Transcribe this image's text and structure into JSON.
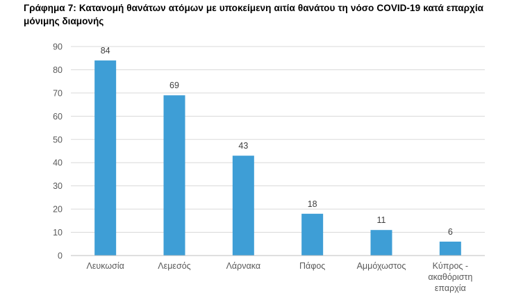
{
  "document": {
    "title": "Γράφημα 7: Κατανομή θανάτων ατόμων με υποκείμενη αιτία θανάτου τη νόσο COVID-19 κατά επαρχία μόνιμης διαμονής"
  },
  "chart_data": {
    "type": "bar",
    "categories": [
      "Λευκωσία",
      "Λεμεσός",
      "Λάρνακα",
      "Πάφος",
      "Αμμόχωστος",
      "Κύπρος - ακαθόριστη επαρχία"
    ],
    "category_lines": [
      [
        "Λευκωσία"
      ],
      [
        "Λεμεσός"
      ],
      [
        "Λάρνακα"
      ],
      [
        "Πάφος"
      ],
      [
        "Αμμόχωστος"
      ],
      [
        "Κύπρος -",
        "ακαθόριστη",
        "επαρχία"
      ]
    ],
    "values": [
      84,
      69,
      43,
      18,
      11,
      6
    ],
    "ylim": [
      0,
      90
    ],
    "yticks": [
      0,
      10,
      20,
      30,
      40,
      50,
      60,
      70,
      80,
      90
    ],
    "grid": true,
    "legend": false,
    "bar_color": "#3E9ED6",
    "grid_color": "#D9D9D9",
    "axis_color": "#BFBFBF",
    "data_labels": true
  }
}
